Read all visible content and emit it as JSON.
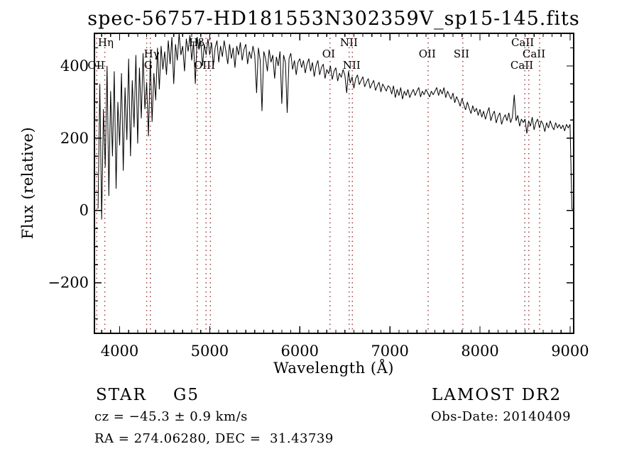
{
  "title": "spec-56757-HD181553N302359V_sp15-145.fits",
  "footer": {
    "class_label": "STAR    G5",
    "survey": "LAMOST DR2",
    "cz": "cz = −45.3 ± 0.9 km/s",
    "obs_date": "Obs-Date: 20140409",
    "ra_dec": "RA = 274.06280, DEC =  31.43739"
  },
  "colors": {
    "background": "#ffffff",
    "trace": "#000000",
    "axis": "#000000",
    "line_marker": "#993333"
  },
  "chart_data": {
    "type": "line",
    "title": "spec-56757-HD181553N302359V_sp15-145.fits",
    "xlabel": "Wavelength (Å)",
    "ylabel": "Flux (relative)",
    "xlim": [
      3720,
      9040
    ],
    "ylim": [
      -340,
      490
    ],
    "grid": false,
    "x_ticks_major": [
      4000,
      5000,
      6000,
      7000,
      8000,
      9000
    ],
    "x_tick_labels": [
      "4000",
      "5000",
      "6000",
      "7000",
      "8000",
      "9000"
    ],
    "x_minor_step": 100,
    "y_ticks_major": [
      -200,
      0,
      200,
      400
    ],
    "y_tick_labels": [
      "−200",
      "0",
      "200",
      "400"
    ],
    "y_minor_step": 50,
    "line_markers": [
      {
        "label": "OII",
        "wavelength": 3745,
        "label_wavelength": 3740,
        "row": 3
      },
      {
        "label": "Hη",
        "wavelength": 3835,
        "label_wavelength": 3845,
        "row": 1
      },
      {
        "label": "G",
        "wavelength": 4300,
        "label_wavelength": 4318,
        "row": 3
      },
      {
        "label": "Hγ",
        "wavelength": 4340,
        "label_wavelength": 4355,
        "row": 2
      },
      {
        "label": "Hβ",
        "wavelength": 4861,
        "label_wavelength": 4855,
        "row": 1
      },
      {
        "label": "OIII",
        "wavelength": 4959,
        "label_wavelength": 4942,
        "row": 3
      },
      {
        "label": "",
        "wavelength": 5007,
        "row": 0
      },
      {
        "label": "OI",
        "wavelength": 6335,
        "label_wavelength": 6320,
        "row": 2
      },
      {
        "label": "NII",
        "wavelength": 6548,
        "label_wavelength": 6545,
        "row": 1
      },
      {
        "label": "NII",
        "wavelength": 6583,
        "label_wavelength": 6575,
        "row": 3
      },
      {
        "label": "OII",
        "wavelength": 7424,
        "label_wavelength": 7415,
        "row": 2
      },
      {
        "label": "SII",
        "wavelength": 7810,
        "label_wavelength": 7795,
        "row": 2
      },
      {
        "label": "CaII",
        "wavelength": 8498,
        "label_wavelength": 8473,
        "row": 1
      },
      {
        "label": "CaII",
        "wavelength": 8542,
        "label_wavelength": 8599,
        "row": 2
      },
      {
        "label": "CaII",
        "wavelength": 8662,
        "label_wavelength": 8465,
        "row": 3
      }
    ],
    "spectrum": {
      "lambda_start": 3760,
      "lambda_step": 20,
      "flux": [
        5,
        350,
        -25,
        280,
        120,
        400,
        40,
        330,
        150,
        385,
        60,
        300,
        180,
        380,
        110,
        340,
        195,
        420,
        150,
        360,
        230,
        430,
        185,
        395,
        255,
        435,
        280,
        355,
        205,
        420,
        245,
        380,
        305,
        450,
        335,
        455,
        390,
        440,
        375,
        470,
        405,
        480,
        350,
        460,
        415,
        490,
        430,
        455,
        385,
        475,
        440,
        485,
        415,
        465,
        350,
        480,
        445,
        470,
        400,
        460,
        430,
        475,
        430,
        465,
        400,
        450,
        470,
        410,
        455,
        425,
        470,
        440,
        405,
        460,
        420,
        450,
        395,
        455,
        430,
        465,
        415,
        445,
        460,
        405,
        440,
        420,
        455,
        430,
        325,
        450,
        415,
        275,
        440,
        420,
        385,
        445,
        410,
        430,
        365,
        425,
        400,
        440,
        295,
        430,
        410,
        270,
        420,
        435,
        390,
        415,
        375,
        410,
        420,
        395,
        415,
        380,
        405,
        420,
        385,
        410,
        370,
        400,
        415,
        375,
        395,
        405,
        365,
        390,
        378,
        400,
        362,
        385,
        395,
        358,
        380,
        368,
        390,
        375,
        325,
        385,
        352,
        370,
        338,
        365,
        375,
        348,
        360,
        370,
        342,
        355,
        365,
        338,
        350,
        360,
        332,
        345,
        355,
        328,
        350,
        340,
        330,
        345,
        340,
        322,
        345,
        312,
        335,
        318,
        340,
        308,
        330,
        318,
        335,
        312,
        325,
        335,
        318,
        330,
        340,
        314,
        330,
        320,
        335,
        325,
        314,
        330,
        320,
        330,
        340,
        318,
        335,
        322,
        340,
        312,
        330,
        318,
        308,
        325,
        298,
        315,
        303,
        288,
        310,
        293,
        278,
        300,
        283,
        268,
        290,
        273,
        283,
        263,
        280,
        258,
        275,
        252,
        270,
        285,
        248,
        265,
        275,
        242,
        260,
        270,
        238,
        255,
        265,
        248,
        270,
        243,
        258,
        320,
        248,
        263,
        233,
        253,
        243,
        253,
        213,
        248,
        233,
        258,
        223,
        243,
        253,
        228,
        248,
        238,
        218,
        243,
        228,
        248,
        233,
        223,
        243,
        228,
        238,
        226,
        236,
        220,
        238,
        228,
        238,
        4,
        2
      ]
    }
  }
}
